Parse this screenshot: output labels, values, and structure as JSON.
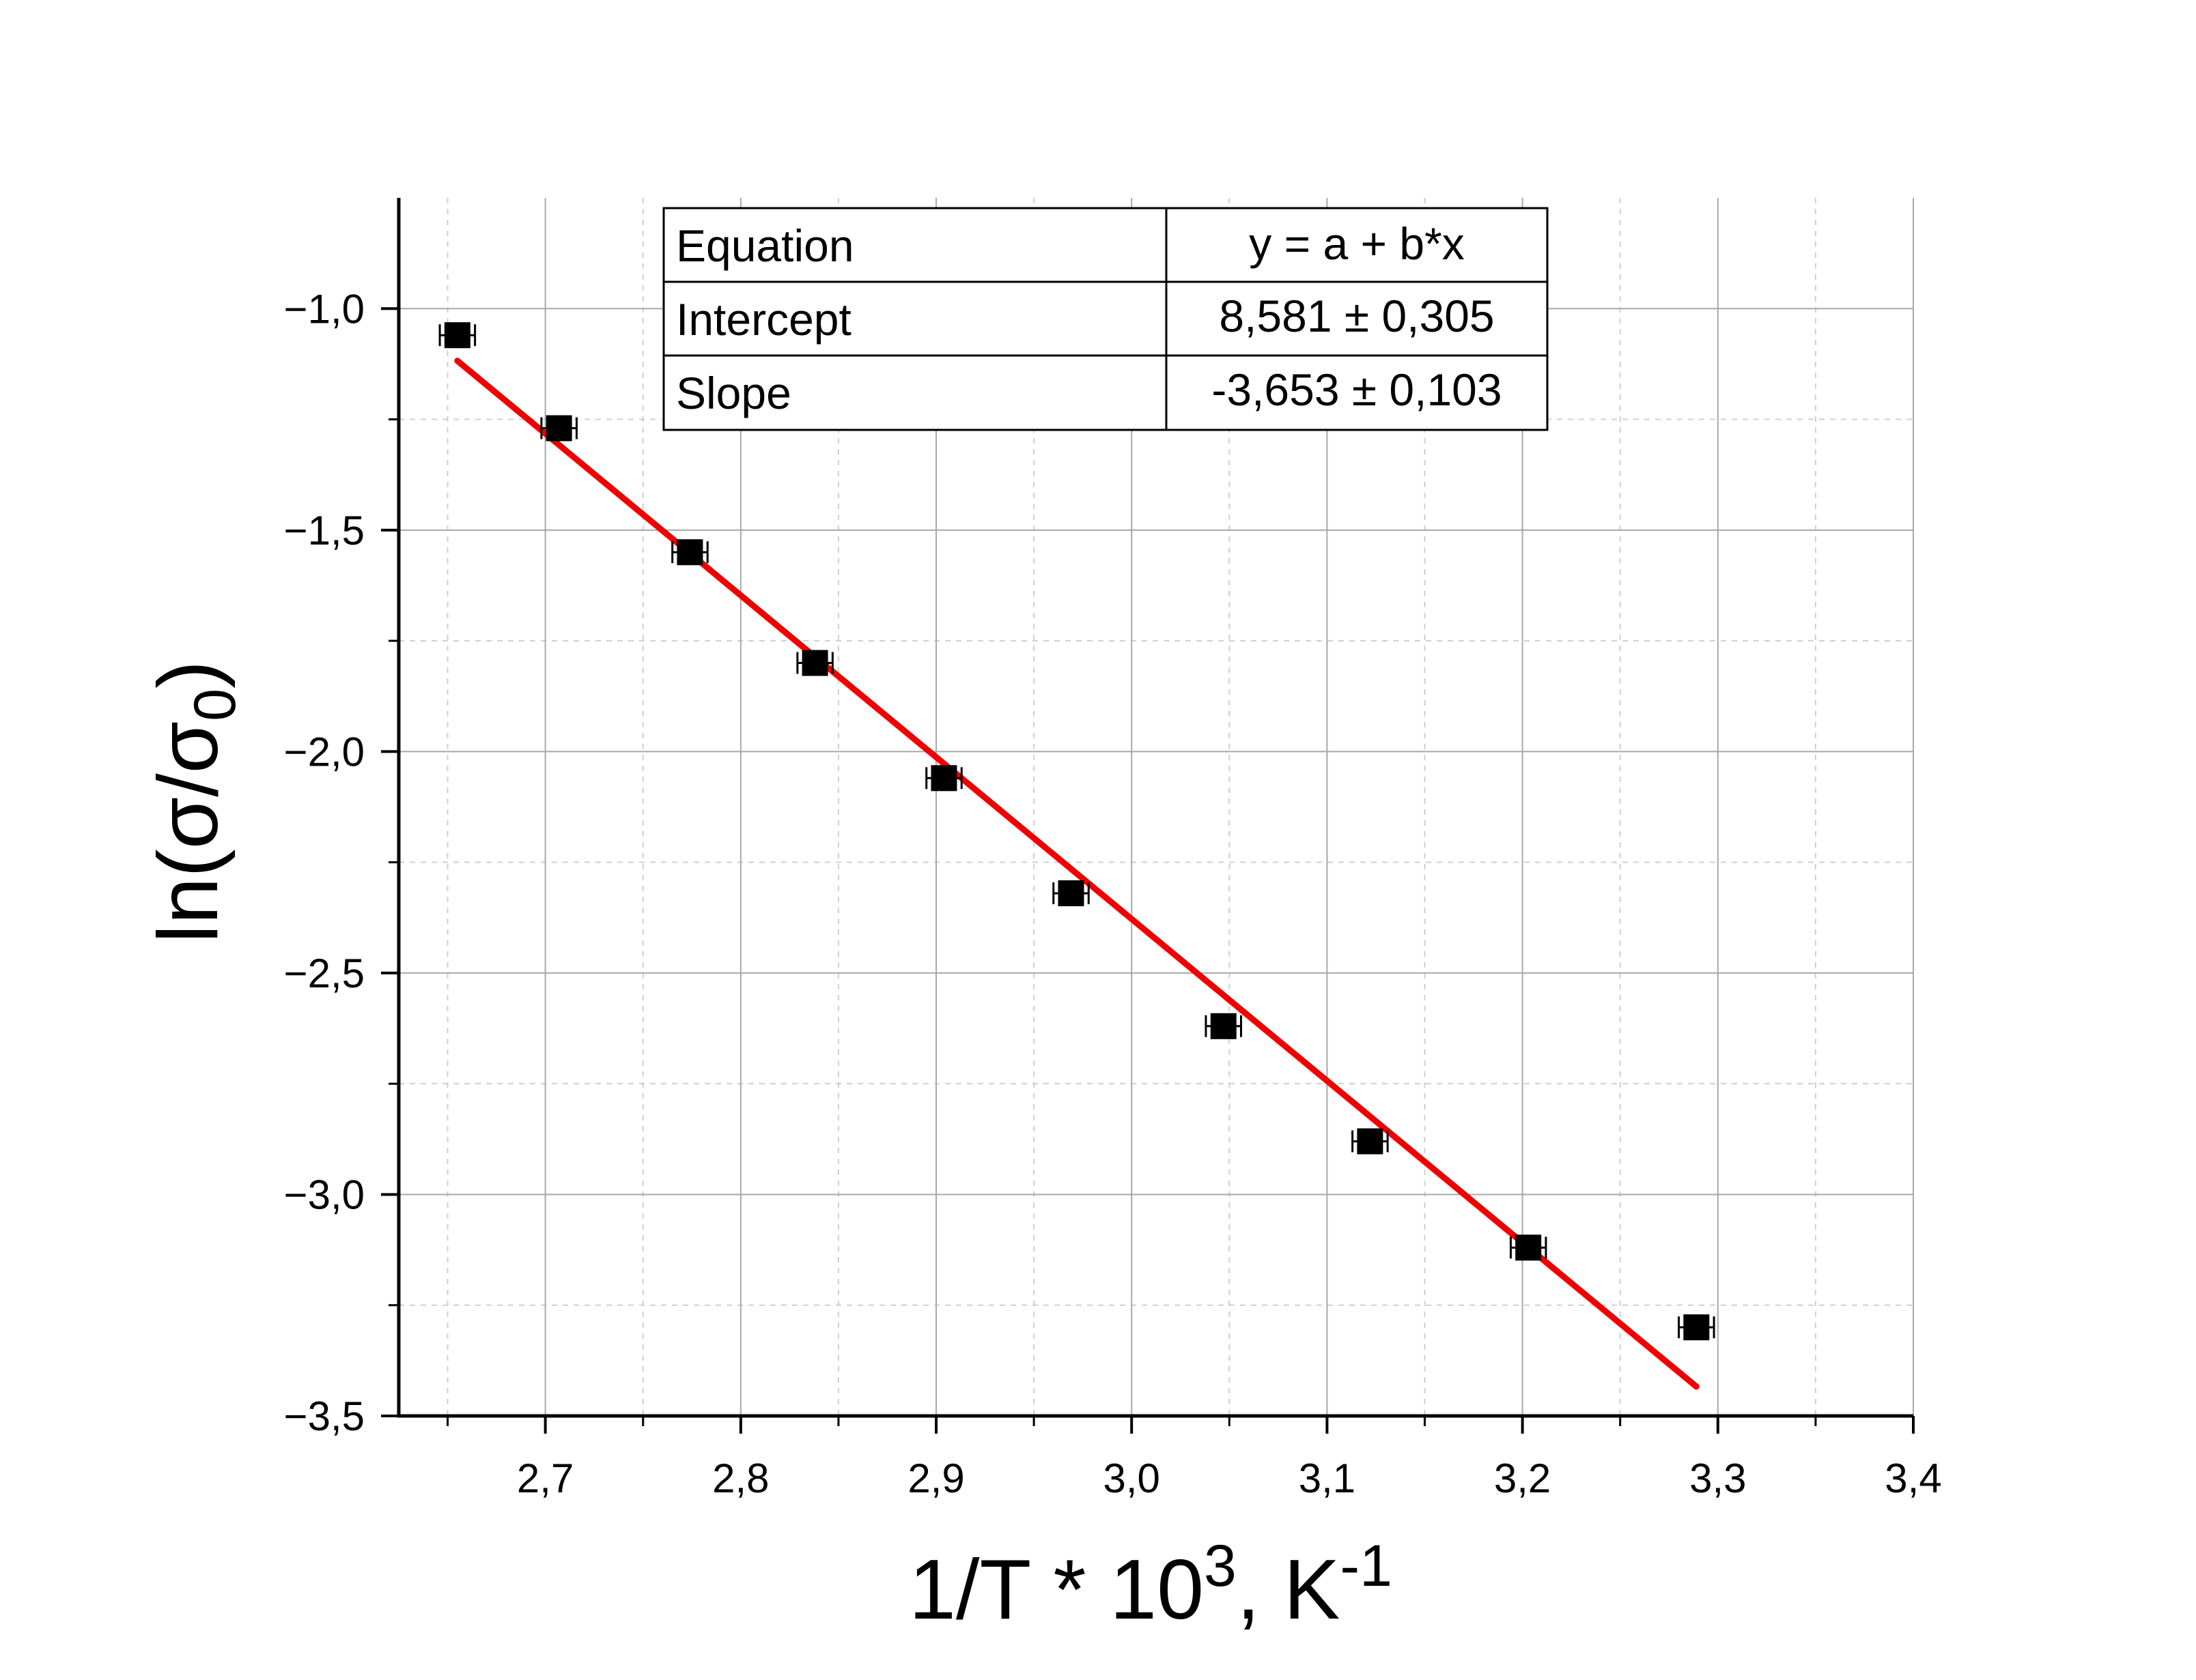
{
  "chart_data": {
    "type": "scatter",
    "xlabel": {
      "main": "1/T * 10",
      "sup": "3",
      "unit": ", K",
      "unit_sup": "-1"
    },
    "ylabel": {
      "main": "ln(σ/σ",
      "sub": "0",
      "close": ")"
    },
    "xlim": [
      2.625,
      3.4
    ],
    "ylim": [
      -3.5,
      -0.75
    ],
    "xticks": [
      2.7,
      2.8,
      2.9,
      3.0,
      3.1,
      3.2,
      3.3,
      3.4
    ],
    "xtick_labels": [
      "2,7",
      "2,8",
      "2,9",
      "3,0",
      "3,1",
      "3,2",
      "3,3",
      "3,4"
    ],
    "yticks": [
      -1.0,
      -1.5,
      -2.0,
      -2.5,
      -3.0,
      -3.5
    ],
    "ytick_labels": [
      "−1,0",
      "−1,5",
      "−2,0",
      "−2,5",
      "−3,0",
      "−3,5"
    ],
    "grid": true,
    "series": [
      {
        "marker": "square",
        "color": "#000000",
        "x": [
          2.655,
          2.707,
          2.774,
          2.838,
          2.904,
          2.969,
          3.047,
          3.122,
          3.203,
          3.289
        ],
        "y": [
          -1.06,
          -1.27,
          -1.55,
          -1.8,
          -2.06,
          -2.32,
          -2.62,
          -2.88,
          -3.12,
          -3.3
        ],
        "x_err": 0.009
      }
    ],
    "fit": {
      "color": "#ee0000",
      "intercept": 8.581,
      "slope": -3.653,
      "x_range": [
        2.655,
        3.289
      ]
    },
    "fit_table": {
      "rows": [
        {
          "label": "Equation",
          "value": "y = a + b*x"
        },
        {
          "label": "Intercept",
          "value": "8,581 ± 0,305"
        },
        {
          "label": "Slope",
          "value": "-3,653 ± 0,103"
        }
      ]
    }
  }
}
